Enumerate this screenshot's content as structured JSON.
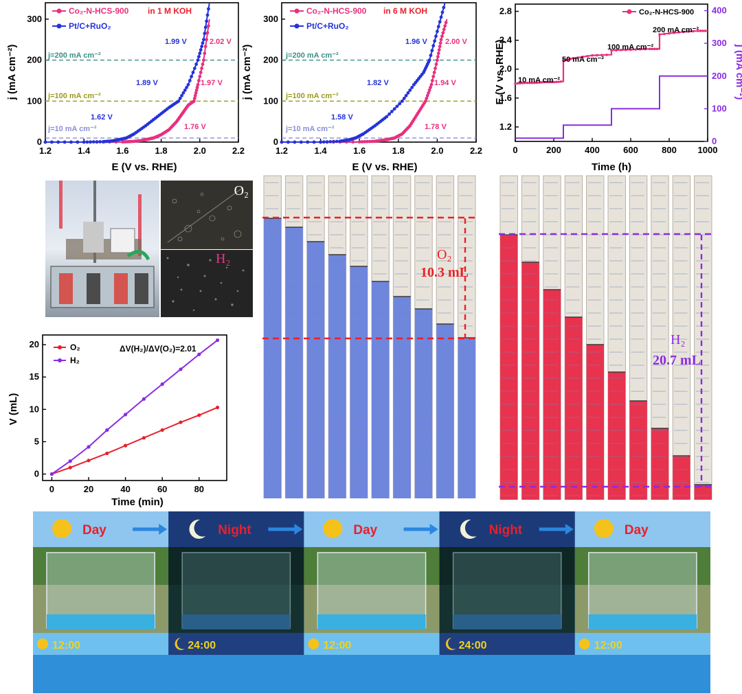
{
  "chart_data": [
    {
      "type": "line",
      "id": "lsv_1m",
      "xlabel": "E (V vs. RHE)",
      "ylabel": "j (mA cm⁻²)",
      "xlim": [
        1.2,
        2.2
      ],
      "ylim": [
        0,
        340
      ],
      "xticks": [
        "1.2",
        "1.4",
        "1.6",
        "1.8",
        "2.0",
        "2.2"
      ],
      "yticks": [
        "0",
        "100",
        "200",
        "300"
      ],
      "legend": [
        "Co₂-N-HCS-900",
        "Pt/C+RuO₂"
      ],
      "electrolyte": "in 1 M KOH",
      "reference_lines": [
        {
          "y": 200,
          "label": "j=200 mA cm⁻²",
          "color": "#3a8f86"
        },
        {
          "y": 100,
          "label": "j=100 mA cm⁻²",
          "color": "#9a9a1e"
        },
        {
          "y": 10,
          "label": "j=10 mA cm⁻²",
          "color": "#8a8fd0"
        }
      ],
      "series": [
        {
          "name": "Co₂-N-HCS-900",
          "color": "#e8307e",
          "x": [
            1.2,
            1.4,
            1.6,
            1.65,
            1.7,
            1.74,
            1.76,
            1.8,
            1.84,
            1.88,
            1.91,
            1.94,
            1.97,
            1.99,
            2.02,
            2.05
          ],
          "y": [
            0,
            0,
            0.5,
            1.5,
            4,
            8,
            10,
            18,
            30,
            50,
            70,
            90,
            100,
            140,
            200,
            300
          ]
        },
        {
          "name": "Pt/C+RuO₂",
          "color": "#2433d9",
          "x": [
            1.2,
            1.4,
            1.5,
            1.55,
            1.58,
            1.62,
            1.66,
            1.72,
            1.78,
            1.84,
            1.89,
            1.94,
            1.99,
            2.02,
            2.05
          ],
          "y": [
            0,
            0,
            1,
            3,
            6,
            10,
            20,
            40,
            62,
            84,
            100,
            140,
            200,
            250,
            340
          ]
        }
      ],
      "annotations": [
        {
          "text": "1.99 V",
          "color": "#2433d9"
        },
        {
          "text": "1.89 V",
          "color": "#2433d9"
        },
        {
          "text": "1.62 V",
          "color": "#2433d9"
        },
        {
          "text": "2.02 V",
          "color": "#e8307e"
        },
        {
          "text": "1.97 V",
          "color": "#e8307e"
        },
        {
          "text": "1.76 V",
          "color": "#e8307e"
        }
      ]
    },
    {
      "type": "line",
      "id": "lsv_6m",
      "xlabel": "E (V vs. RHE)",
      "ylabel": "j (mA cm⁻²)",
      "xlim": [
        1.2,
        2.2
      ],
      "ylim": [
        0,
        340
      ],
      "xticks": [
        "1.2",
        "1.4",
        "1.6",
        "1.8",
        "2.0",
        "2.2"
      ],
      "yticks": [
        "0",
        "100",
        "200",
        "300"
      ],
      "legend": [
        "Co₂-N-HCS-900",
        "Pt/C+RuO₂"
      ],
      "electrolyte": "in 6 M KOH",
      "reference_lines": [
        {
          "y": 200,
          "label": "j=200 mA cm⁻²",
          "color": "#3a8f86"
        },
        {
          "y": 100,
          "label": "j=100 mA cm⁻²",
          "color": "#9a9a1e"
        },
        {
          "y": 10,
          "label": "j=10 mA cm⁻²",
          "color": "#8a8fd0"
        }
      ],
      "series": [
        {
          "name": "Co₂-N-HCS-900",
          "color": "#e8307e",
          "x": [
            1.2,
            1.4,
            1.6,
            1.68,
            1.74,
            1.78,
            1.82,
            1.86,
            1.9,
            1.94,
            1.97,
            2.0,
            2.02,
            2.05
          ],
          "y": [
            0,
            0,
            0.5,
            2,
            6,
            10,
            20,
            40,
            70,
            100,
            140,
            200,
            250,
            300
          ]
        },
        {
          "name": "Pt/C+RuO₂",
          "color": "#2433d9",
          "x": [
            1.2,
            1.4,
            1.5,
            1.55,
            1.58,
            1.62,
            1.68,
            1.74,
            1.82,
            1.88,
            1.93,
            1.96,
            2.0,
            2.04
          ],
          "y": [
            0,
            0,
            2,
            6,
            10,
            20,
            40,
            62,
            100,
            140,
            170,
            200,
            270,
            340
          ]
        }
      ],
      "annotations": [
        {
          "text": "1.96 V",
          "color": "#2433d9"
        },
        {
          "text": "1.82 V",
          "color": "#2433d9"
        },
        {
          "text": "1.58 V",
          "color": "#2433d9"
        },
        {
          "text": "2.00 V",
          "color": "#e8307e"
        },
        {
          "text": "1.94 V",
          "color": "#e8307e"
        },
        {
          "text": "1.78 V",
          "color": "#e8307e"
        }
      ]
    },
    {
      "type": "line",
      "id": "stability",
      "xlabel": "Time (h)",
      "ylabel": "E (V vs. RHE)",
      "ylabel_right": "j (mA cm⁻²)",
      "xlim": [
        0,
        1000
      ],
      "ylim": [
        1.0,
        2.9
      ],
      "ylim_right": [
        0,
        420
      ],
      "xticks": [
        "0",
        "200",
        "400",
        "600",
        "800",
        "1000"
      ],
      "yticks": [
        "1.2",
        "1.6",
        "2.0",
        "2.4",
        "2.8"
      ],
      "yticks_right": [
        "0",
        "100",
        "200",
        "300",
        "400"
      ],
      "legend": [
        "Co₂-N-HCS-900"
      ],
      "series": [
        {
          "name": "Potential",
          "color": "#e8307e",
          "x": [
            0,
            50,
            100,
            150,
            200,
            250,
            250,
            300,
            400,
            500,
            500,
            600,
            700,
            750,
            750,
            850,
            950,
            1000
          ],
          "y": [
            1.8,
            1.81,
            1.81,
            1.82,
            1.82,
            1.83,
            2.12,
            2.15,
            2.19,
            2.2,
            2.26,
            2.27,
            2.28,
            2.28,
            2.48,
            2.51,
            2.53,
            2.53
          ]
        },
        {
          "name": "Current density",
          "color": "#8a2be2",
          "x": [
            0,
            250,
            250,
            500,
            500,
            750,
            750,
            1000
          ],
          "y": [
            10,
            10,
            50,
            50,
            100,
            100,
            200,
            200
          ]
        }
      ],
      "annotations": [
        "10 mA cm⁻²",
        "50 mA cm⁻²",
        "100 mA cm⁻²",
        "200 mA cm⁻²"
      ]
    },
    {
      "type": "scatter",
      "id": "gas_volume",
      "xlabel": "Time (min)",
      "ylabel": "V (mL)",
      "xlim": [
        -5,
        95
      ],
      "ylim": [
        -1,
        21.5
      ],
      "xticks": [
        "0",
        "20",
        "40",
        "60",
        "80"
      ],
      "yticks": [
        "0",
        "5",
        "10",
        "15",
        "20"
      ],
      "ratio_label": "ΔV(H₂)/ΔV(O₂)=2.01",
      "series": [
        {
          "name": "O₂",
          "color": "#e8202a",
          "x": [
            0,
            10,
            20,
            30,
            40,
            50,
            60,
            70,
            80,
            90
          ],
          "y": [
            0,
            1.0,
            2.1,
            3.2,
            4.4,
            5.6,
            6.8,
            8.0,
            9.1,
            10.3
          ]
        },
        {
          "name": "H₂",
          "color": "#8a2be2",
          "x": [
            0,
            10,
            20,
            30,
            40,
            50,
            60,
            70,
            80,
            90
          ],
          "y": [
            0,
            2.0,
            4.2,
            6.8,
            9.2,
            11.6,
            13.9,
            16.2,
            18.5,
            20.7
          ]
        }
      ]
    }
  ],
  "labels": {
    "o2_tag": "O₂",
    "h2_tag": "H₂",
    "o2_volume_gas": "O₂",
    "o2_volume_value": "10.3 mL",
    "h2_volume_gas": "H₂",
    "h2_volume_value": "20.7 mL",
    "day": "Day",
    "night": "Night",
    "time_noon": "12:00",
    "time_midnight": "24:00"
  },
  "colors": {
    "pink": "#e8307e",
    "blue": "#2433d9",
    "purple": "#8a2be2",
    "red": "#e8202a"
  }
}
